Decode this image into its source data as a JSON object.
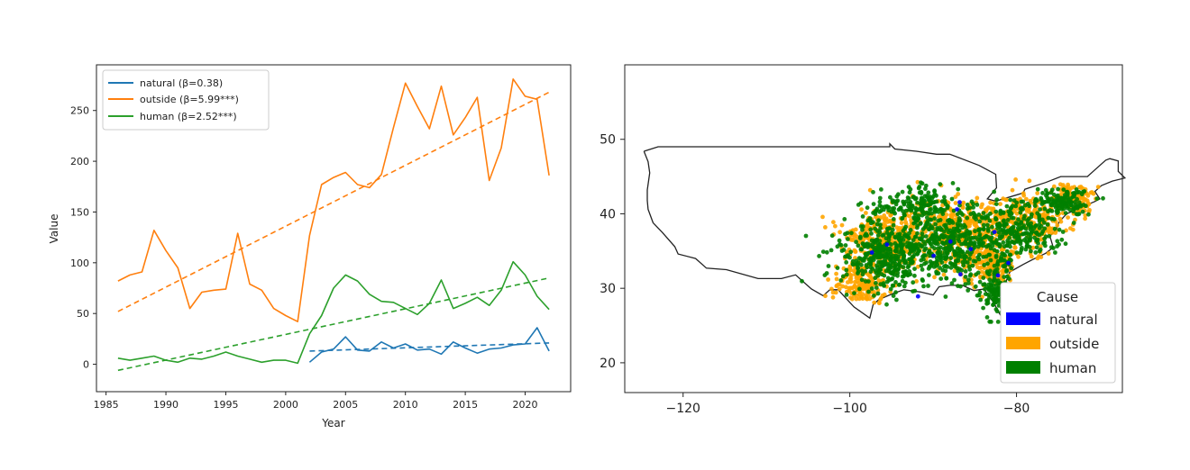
{
  "chart_data": [
    {
      "type": "line",
      "xlabel": "Year",
      "ylabel": "Value",
      "xlim": [
        1984.2,
        2023.8
      ],
      "ylim": [
        -27,
        295
      ],
      "xticks": [
        1985,
        1990,
        1995,
        2000,
        2005,
        2010,
        2015,
        2020
      ],
      "yticks": [
        0,
        50,
        100,
        150,
        200,
        250
      ],
      "legend_position": "upper-left",
      "series": [
        {
          "name": "natural (β=0.38)",
          "color": "#1f77b4",
          "x": [
            2002,
            2003,
            2004,
            2005,
            2006,
            2007,
            2008,
            2009,
            2010,
            2011,
            2012,
            2013,
            2014,
            2015,
            2016,
            2017,
            2018,
            2019,
            2020,
            2021,
            2022
          ],
          "y": [
            2,
            12,
            15,
            27,
            14,
            13,
            22,
            16,
            20,
            14,
            15,
            10,
            22,
            16,
            11,
            15,
            16,
            19,
            20,
            36,
            13
          ],
          "trend": [
            [
              2002,
              13
            ],
            [
              2022,
              21
            ]
          ]
        },
        {
          "name": "outside (β=5.99***)",
          "color": "#ff7f0e",
          "x": [
            1986,
            1987,
            1988,
            1989,
            1990,
            1991,
            1992,
            1993,
            1994,
            1995,
            1996,
            1997,
            1998,
            1999,
            2000,
            2001,
            2002,
            2003,
            2004,
            2005,
            2006,
            2007,
            2008,
            2009,
            2010,
            2011,
            2012,
            2013,
            2014,
            2015,
            2016,
            2017,
            2018,
            2019,
            2020,
            2021,
            2022
          ],
          "y": [
            82,
            88,
            91,
            132,
            112,
            95,
            55,
            71,
            73,
            74,
            129,
            79,
            73,
            55,
            48,
            42,
            127,
            177,
            184,
            189,
            177,
            174,
            187,
            233,
            277,
            254,
            232,
            274,
            226,
            243,
            263,
            181,
            213,
            281,
            264,
            261,
            186
          ],
          "trend": [
            [
              1986,
              52
            ],
            [
              2022,
              268
            ]
          ]
        },
        {
          "name": "human (β=2.52***)",
          "color": "#2ca02c",
          "x": [
            1986,
            1987,
            1988,
            1989,
            1990,
            1991,
            1992,
            1993,
            1994,
            1995,
            1996,
            1997,
            1998,
            1999,
            2000,
            2001,
            2002,
            2003,
            2004,
            2005,
            2006,
            2007,
            2008,
            2009,
            2010,
            2011,
            2012,
            2013,
            2014,
            2015,
            2016,
            2017,
            2018,
            2019,
            2020,
            2021,
            2022
          ],
          "y": [
            6,
            4,
            6,
            8,
            4,
            2,
            6,
            5,
            8,
            12,
            8,
            5,
            2,
            4,
            4,
            1,
            30,
            48,
            75,
            88,
            82,
            69,
            62,
            61,
            55,
            49,
            60,
            83,
            55,
            60,
            66,
            58,
            73,
            101,
            88,
            67,
            54
          ],
          "trend": [
            [
              1986,
              -6
            ],
            [
              2022,
              85
            ]
          ]
        }
      ]
    },
    {
      "type": "scatter",
      "xlim": [
        -127,
        -67.3
      ],
      "ylim": [
        16,
        60
      ],
      "xticks": [
        -120,
        -100,
        -80
      ],
      "yticks": [
        20,
        30,
        40,
        50
      ],
      "xtick_labels": [
        "−120",
        "−100",
        "−80"
      ],
      "legend": {
        "title": "Cause",
        "position": "lower-right",
        "entries": [
          {
            "label": "natural",
            "color": "#0000ff"
          },
          {
            "label": "outside",
            "color": "#ffa500"
          },
          {
            "label": "human",
            "color": "#008000"
          }
        ]
      },
      "boundary_outline": [
        [
          -124.7,
          48.4
        ],
        [
          -124.2,
          47.0
        ],
        [
          -124.0,
          45.5
        ],
        [
          -124.3,
          43.2
        ],
        [
          -124.3,
          41.8
        ],
        [
          -124.2,
          40.6
        ],
        [
          -123.6,
          38.8
        ],
        [
          -122.5,
          37.5
        ],
        [
          -121.0,
          35.6
        ],
        [
          -120.6,
          34.6
        ],
        [
          -118.5,
          34.0
        ],
        [
          -117.2,
          32.7
        ],
        [
          -114.8,
          32.5
        ],
        [
          -111.0,
          31.3
        ],
        [
          -108.2,
          31.3
        ],
        [
          -106.5,
          31.8
        ],
        [
          -104.6,
          29.9
        ],
        [
          -103.2,
          29.0
        ],
        [
          -102.4,
          29.8
        ],
        [
          -101.4,
          29.8
        ],
        [
          -99.5,
          27.5
        ],
        [
          -97.6,
          26.0
        ],
        [
          -97.2,
          27.8
        ],
        [
          -96.5,
          28.5
        ],
        [
          -94.8,
          29.3
        ],
        [
          -93.5,
          29.8
        ],
        [
          -91.5,
          29.5
        ],
        [
          -90.0,
          29.1
        ],
        [
          -89.3,
          30.2
        ],
        [
          -88.0,
          30.4
        ],
        [
          -86.5,
          30.4
        ],
        [
          -85.1,
          29.7
        ],
        [
          -83.9,
          29.9
        ],
        [
          -82.7,
          28.0
        ],
        [
          -82.1,
          26.7
        ],
        [
          -81.4,
          25.5
        ],
        [
          -80.4,
          25.3
        ],
        [
          -80.0,
          26.5
        ],
        [
          -80.6,
          28.4
        ],
        [
          -81.4,
          30.5
        ],
        [
          -80.8,
          32.2
        ],
        [
          -79.2,
          33.2
        ],
        [
          -78.0,
          33.9
        ],
        [
          -76.5,
          34.7
        ],
        [
          -75.6,
          35.5
        ],
        [
          -76.0,
          37.0
        ],
        [
          -75.2,
          38.0
        ],
        [
          -74.9,
          38.9
        ],
        [
          -74.0,
          40.0
        ],
        [
          -72.0,
          41.0
        ],
        [
          -70.7,
          41.6
        ],
        [
          -70.0,
          42.0
        ],
        [
          -70.6,
          43.0
        ],
        [
          -69.8,
          43.8
        ],
        [
          -68.5,
          44.4
        ],
        [
          -67.0,
          44.8
        ],
        [
          -67.8,
          45.7
        ],
        [
          -67.8,
          47.1
        ],
        [
          -68.8,
          47.4
        ],
        [
          -69.3,
          47.2
        ],
        [
          -70.5,
          46.0
        ],
        [
          -71.5,
          45.0
        ],
        [
          -74.7,
          45.0
        ],
        [
          -76.5,
          44.2
        ],
        [
          -79.0,
          43.3
        ],
        [
          -79.2,
          42.8
        ],
        [
          -82.5,
          41.7
        ],
        [
          -83.5,
          42.0
        ],
        [
          -82.4,
          43.5
        ],
        [
          -82.5,
          45.3
        ],
        [
          -84.5,
          46.5
        ],
        [
          -88.0,
          48.0
        ],
        [
          -89.6,
          48.0
        ],
        [
          -92.0,
          48.4
        ],
        [
          -94.6,
          48.7
        ],
        [
          -95.2,
          49.4
        ],
        [
          -95.2,
          49.0
        ],
        [
          -123.0,
          49.0
        ],
        [
          -124.7,
          48.4
        ]
      ],
      "point_clusters": [
        {
          "color": "#ffa500",
          "count": 1500,
          "regions": [
            [
              -95.5,
              36.5,
              4.5,
              3.5,
              3
            ],
            [
              -87.0,
              38.0,
              5,
              3.5,
              3
            ],
            [
              -78.5,
              39.5,
              4,
              3,
              2
            ],
            [
              -83.0,
              33.5,
              4,
              2.5,
              2
            ],
            [
              -98.5,
              30.5,
              2.5,
              2.5,
              1.5
            ],
            [
              -73.0,
              42.0,
              2,
              1.5,
              1
            ]
          ]
        },
        {
          "color": "#008000",
          "count": 1500,
          "regions": [
            [
              -96.0,
              34.5,
              4.5,
              4,
              3
            ],
            [
              -88.0,
              35.5,
              5,
              4,
              3
            ],
            [
              -80.0,
              37.5,
              4,
              3.5,
              2
            ],
            [
              -82.5,
              29.5,
              1.5,
              2.5,
              1
            ],
            [
              -92.0,
              41.0,
              4,
              2,
              1.5
            ],
            [
              -74.5,
              41.5,
              2.5,
              1.5,
              1
            ]
          ]
        },
        {
          "color": "#0000ff",
          "count": 12,
          "regions": [
            [
              -87.0,
              35.0,
              7,
              5,
              1
            ]
          ]
        }
      ]
    }
  ]
}
